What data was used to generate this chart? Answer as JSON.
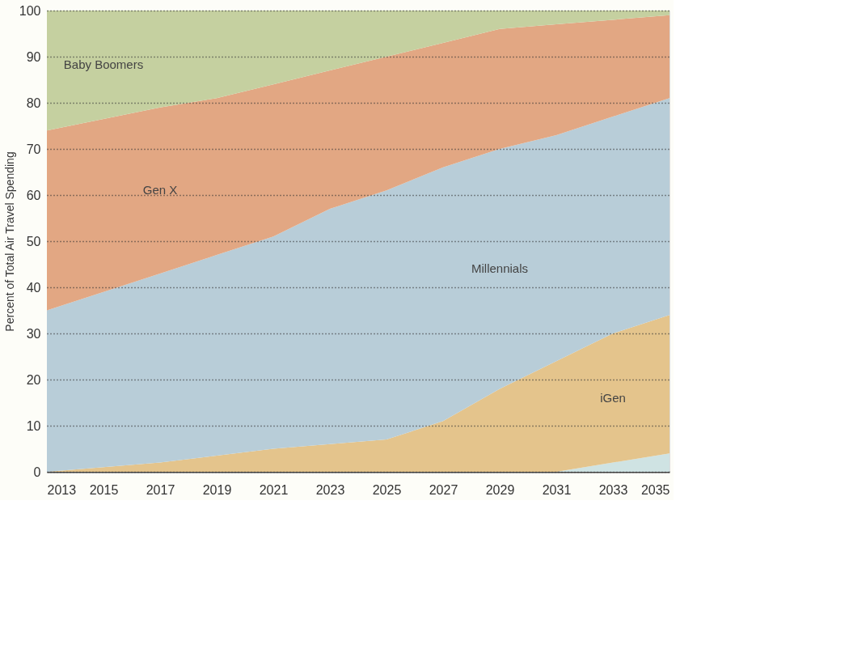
{
  "chart_data": {
    "type": "area",
    "stacked": true,
    "ylabel": "Percent of Total Air Travel Spending",
    "x": [
      2013,
      2015,
      2017,
      2019,
      2021,
      2023,
      2025,
      2027,
      2029,
      2031,
      2033,
      2035
    ],
    "series": [
      {
        "color": "#cfe3e3",
        "values": [
          0,
          0,
          0,
          0,
          0,
          0,
          0,
          0,
          0,
          0,
          2,
          4
        ]
      },
      {
        "name": "iGen",
        "color": "#e4c48c",
        "values": [
          0,
          1,
          2,
          3.5,
          5,
          6,
          7,
          11,
          18,
          24,
          28,
          30
        ]
      },
      {
        "name": "Millennials",
        "color": "#b8cdd8",
        "values": [
          35,
          38,
          41,
          43.5,
          46,
          51,
          54,
          55,
          52,
          49,
          47,
          47
        ]
      },
      {
        "name": "Gen X",
        "color": "#e2a783",
        "values": [
          39,
          37.5,
          36,
          34,
          33,
          30,
          29,
          27,
          26,
          24,
          21,
          18
        ]
      },
      {
        "name": "Baby Boomers",
        "color": "#c5d0a0",
        "values": [
          26,
          23.5,
          21,
          19,
          16,
          13,
          10,
          7,
          4,
          3,
          2,
          1
        ]
      }
    ],
    "xlim": [
      2013,
      2035
    ],
    "xticks": [
      2013,
      2015,
      2017,
      2019,
      2021,
      2023,
      2025,
      2027,
      2029,
      2031,
      2033,
      2035
    ],
    "ylim": [
      0,
      100
    ],
    "yticks": [
      0,
      10,
      20,
      30,
      40,
      50,
      60,
      70,
      80,
      90,
      100
    ],
    "grid": "y",
    "legend": false
  }
}
